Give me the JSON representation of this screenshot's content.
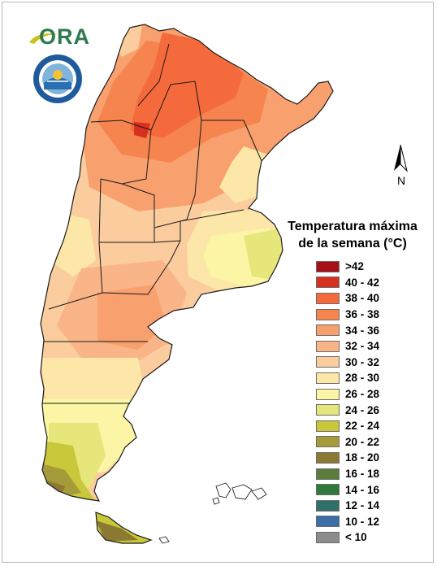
{
  "branding": {
    "ora_text": "ORA",
    "seal_text": "SERVICIO METEOROLÓGICO NACIONAL · ARGENTINA"
  },
  "north_arrow": {
    "label": "N"
  },
  "legend": {
    "title_line1": "Temperatura máxima",
    "title_line2": "de la semana (°C)",
    "items": [
      {
        "label": ">42",
        "color": "#a50f15"
      },
      {
        "label": "40 - 42",
        "color": "#d7301f"
      },
      {
        "label": "38 - 40",
        "color": "#f46a3c"
      },
      {
        "label": "36 - 38",
        "color": "#f6844f"
      },
      {
        "label": "34 - 36",
        "color": "#f8a06e"
      },
      {
        "label": "32 - 34",
        "color": "#f9b588"
      },
      {
        "label": "30 - 32",
        "color": "#fbcc9e"
      },
      {
        "label": "28 - 30",
        "color": "#fde7a8"
      },
      {
        "label": "26 - 28",
        "color": "#fbf5a5"
      },
      {
        "label": "24 - 26",
        "color": "#e7e67a"
      },
      {
        "label": "22 - 24",
        "color": "#c8c83a"
      },
      {
        "label": "20 - 22",
        "color": "#a69b3a"
      },
      {
        "label": "18 - 20",
        "color": "#8c7a32"
      },
      {
        "label": "16 - 18",
        "color": "#5b7d3c"
      },
      {
        "label": "14 - 16",
        "color": "#2f7a3b"
      },
      {
        "label": "12 - 14",
        "color": "#2f6e6a"
      },
      {
        "label": "10 - 12",
        "color": "#3b6ea8"
      },
      {
        "label": "< 10",
        "color": "#8c8c8c"
      }
    ]
  }
}
